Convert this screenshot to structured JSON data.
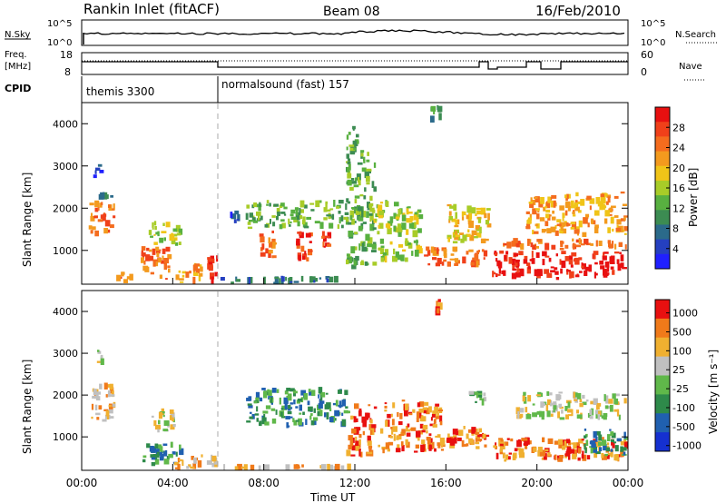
{
  "header": {
    "station": "Rankin Inlet (fitACF)",
    "beam": "Beam 08",
    "date": "16/Feb/2010"
  },
  "strip": {
    "nsky_label": "N.Sky",
    "nsky_ticks": [
      "10^5",
      "10^0"
    ],
    "nsearch_label": "N.Search",
    "nsearch_ticks": [
      "10^5",
      "10^0"
    ],
    "freq_label_1": "Freq.",
    "freq_label_2": "[MHz]",
    "freq_ticks": [
      "18",
      "8"
    ],
    "nave_label": "Nave",
    "nave_ticks": [
      "60",
      "0"
    ],
    "cpid_label": "CPID",
    "cpid_modes": [
      {
        "name": "themis 3300",
        "start_hour": 0,
        "end_hour": 6
      },
      {
        "name": "normalsound (fast) 157",
        "start_hour": 6,
        "end_hour": 24
      }
    ]
  },
  "chart_data": [
    {
      "type": "heatmap",
      "name": "power",
      "ylabel": "Slant Range [km]",
      "y_ticks": [
        "1000",
        "2000",
        "3000",
        "4000"
      ],
      "ylim": [
        200,
        4500
      ],
      "xlim": [
        0,
        24
      ],
      "colorbar_label": "Power [dB]",
      "colorbar_ticks": [
        "28",
        "24",
        "20",
        "16",
        "12",
        "8",
        "4"
      ],
      "colors": [
        "#2020ff",
        "#2540c0",
        "#2b6a8a",
        "#3c8c52",
        "#58b040",
        "#a8cc28",
        "#f0c418",
        "#f39a1e",
        "#f46c1e",
        "#f0401a",
        "#e81010"
      ],
      "cells": [
        {
          "hours": [
            0.3,
            1.5
          ],
          "km": [
            1300,
            2200
          ],
          "level": 8
        },
        {
          "hours": [
            0.3,
            1.5
          ],
          "km": [
            2200,
            2400
          ],
          "level": 2
        },
        {
          "hours": [
            0.5,
            1.0
          ],
          "km": [
            2700,
            3100
          ],
          "level": 1
        },
        {
          "hours": [
            1.5,
            2.3
          ],
          "km": [
            200,
            500
          ],
          "level": 8
        },
        {
          "hours": [
            2.5,
            4.0
          ],
          "km": [
            300,
            1100
          ],
          "level": 8
        },
        {
          "hours": [
            2.8,
            4.5
          ],
          "km": [
            1100,
            1700
          ],
          "level": 5
        },
        {
          "hours": [
            4.0,
            5.5
          ],
          "km": [
            200,
            700
          ],
          "level": 7
        },
        {
          "hours": [
            5.5,
            6.0
          ],
          "km": [
            200,
            1000
          ],
          "level": 10
        },
        {
          "hours": [
            6.0,
            11.5
          ],
          "km": [
            200,
            400
          ],
          "level": 2
        },
        {
          "hours": [
            7.2,
            11.8
          ],
          "km": [
            1500,
            2200
          ],
          "level": 4
        },
        {
          "hours": [
            7.8,
            8.6
          ],
          "km": [
            800,
            1500
          ],
          "level": 8
        },
        {
          "hours": [
            9.4,
            10.2
          ],
          "km": [
            700,
            1500
          ],
          "level": 9
        },
        {
          "hours": [
            10.5,
            11.0
          ],
          "km": [
            900,
            1500
          ],
          "level": 9
        },
        {
          "hours": [
            6.5,
            7.0
          ],
          "km": [
            1600,
            2000
          ],
          "level": 1
        },
        {
          "hours": [
            11.6,
            13.0
          ],
          "km": [
            500,
            3500
          ],
          "level": 4
        },
        {
          "hours": [
            13.0,
            15.0
          ],
          "km": [
            700,
            1300
          ],
          "level": 5
        },
        {
          "hours": [
            12.8,
            15.0
          ],
          "km": [
            1300,
            2200
          ],
          "level": 5
        },
        {
          "hours": [
            15.0,
            18.0
          ],
          "km": [
            600,
            1100
          ],
          "level": 8
        },
        {
          "hours": [
            16.0,
            18.0
          ],
          "km": [
            1100,
            2100
          ],
          "level": 6
        },
        {
          "hours": [
            18.0,
            24.0
          ],
          "km": [
            300,
            1000
          ],
          "level": 10
        },
        {
          "hours": [
            18.5,
            24.0
          ],
          "km": [
            1000,
            1300
          ],
          "level": 8
        },
        {
          "hours": [
            19.5,
            24.0
          ],
          "km": [
            1300,
            2400
          ],
          "level": 7
        },
        {
          "hours": [
            15.3,
            15.9
          ],
          "km": [
            4000,
            4500
          ],
          "level": 3
        },
        {
          "hours": [
            11.6,
            12.2
          ],
          "km": [
            3300,
            4000
          ],
          "level": 4
        }
      ]
    },
    {
      "type": "heatmap",
      "name": "velocity",
      "ylabel": "Slant Range [km]",
      "xlabel": "Time UT",
      "x_ticks": [
        "00:00",
        "04:00",
        "08:00",
        "12:00",
        "16:00",
        "20:00",
        "00:00"
      ],
      "y_ticks": [
        "1000",
        "2000",
        "3000",
        "4000"
      ],
      "ylim": [
        200,
        4500
      ],
      "xlim": [
        0,
        24
      ],
      "colorbar_label": "Velocity [m s⁻¹]",
      "colorbar_ticks": [
        "1000",
        "500",
        "100",
        "25",
        "-25",
        "-100",
        "-500",
        "-1000"
      ],
      "colors": [
        "#1530d0",
        "#2060b0",
        "#2e8a4a",
        "#60b84a",
        "#c0c0c0",
        "#f0b030",
        "#f07a1a",
        "#e81010"
      ],
      "cells": [
        {
          "hours": [
            0.3,
            1.5
          ],
          "km": [
            1300,
            2300
          ],
          "level": 5
        },
        {
          "hours": [
            0.5,
            1.0
          ],
          "km": [
            2700,
            3100
          ],
          "level": 4
        },
        {
          "hours": [
            2.6,
            4.5
          ],
          "km": [
            300,
            900
          ],
          "level": 2
        },
        {
          "hours": [
            3.0,
            4.2
          ],
          "km": [
            1100,
            1700
          ],
          "level": 4
        },
        {
          "hours": [
            4.0,
            6.0
          ],
          "km": [
            200,
            600
          ],
          "level": 5
        },
        {
          "hours": [
            6.0,
            12.0
          ],
          "km": [
            200,
            350
          ],
          "level": 5
        },
        {
          "hours": [
            7.2,
            11.8
          ],
          "km": [
            1200,
            2200
          ],
          "level": 2
        },
        {
          "hours": [
            11.6,
            13.0
          ],
          "km": [
            500,
            1800
          ],
          "level": 6
        },
        {
          "hours": [
            13.0,
            16.0
          ],
          "km": [
            600,
            1900
          ],
          "level": 6
        },
        {
          "hours": [
            16.0,
            18.0
          ],
          "km": [
            800,
            1300
          ],
          "level": 6
        },
        {
          "hours": [
            16.0,
            24.0
          ],
          "km": [
            700,
            1000
          ],
          "level": 6
        },
        {
          "hours": [
            18.0,
            24.0
          ],
          "km": [
            400,
            800
          ],
          "level": 6
        },
        {
          "hours": [
            19.0,
            24.0
          ],
          "km": [
            1400,
            2100
          ],
          "level": 4
        },
        {
          "hours": [
            22.0,
            24.0
          ],
          "km": [
            500,
            1200
          ],
          "level": 2
        },
        {
          "hours": [
            15.5,
            16.0
          ],
          "km": [
            3900,
            4300
          ],
          "level": 6
        },
        {
          "hours": [
            17.0,
            18.0
          ],
          "km": [
            1700,
            2100
          ],
          "level": 3
        }
      ]
    }
  ]
}
